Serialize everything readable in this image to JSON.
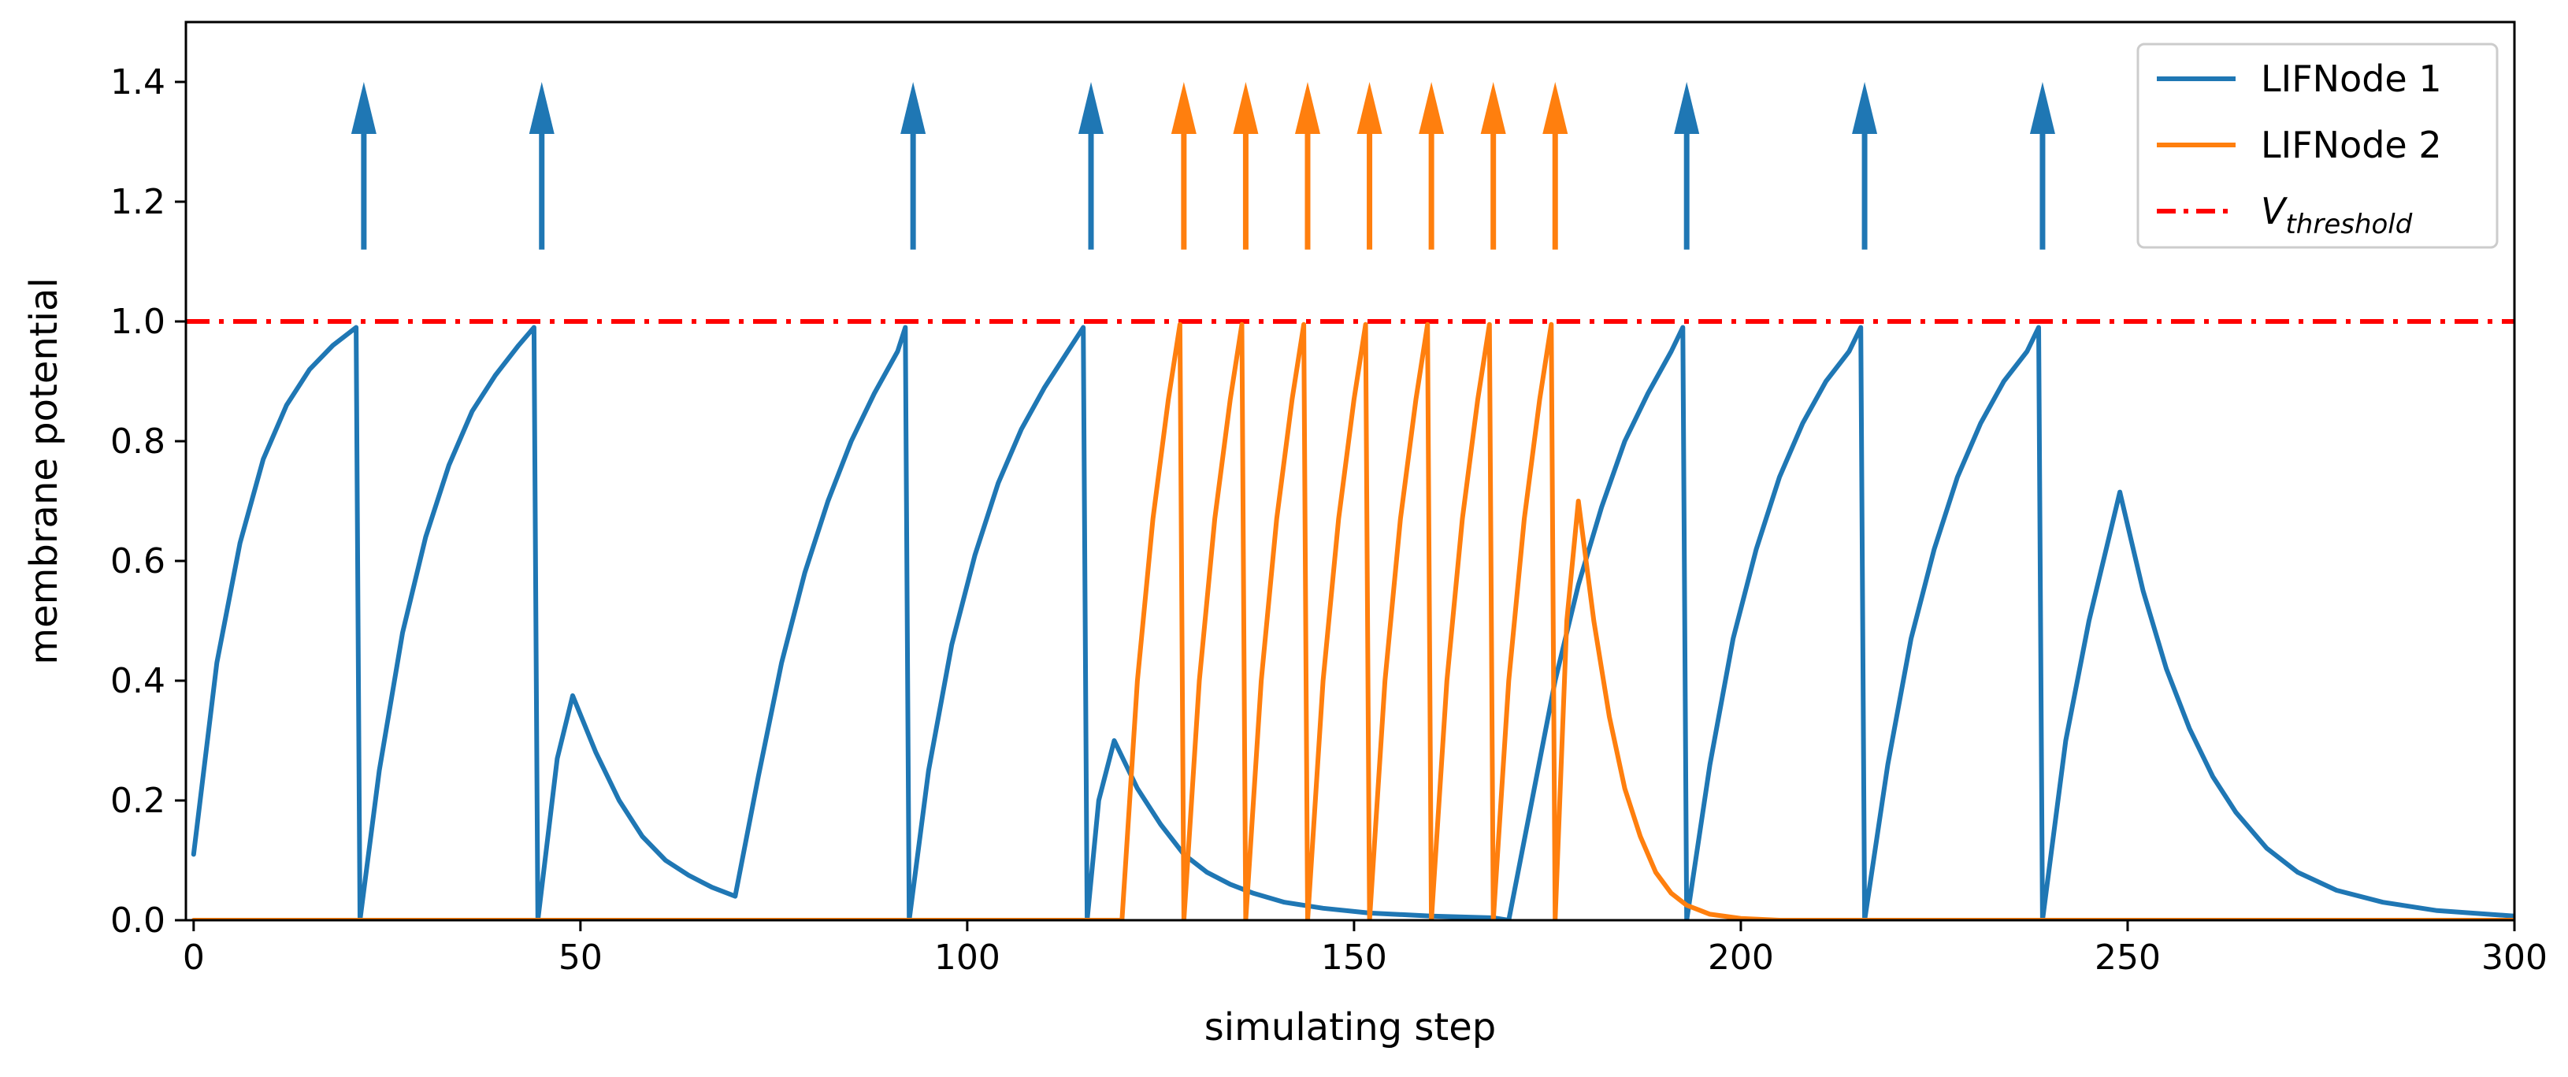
{
  "chart_data": {
    "type": "line",
    "xlabel": "simulating step",
    "ylabel": "membrane potential",
    "xlim": [
      -1,
      300
    ],
    "ylim": [
      0,
      1.5
    ],
    "xticks": [
      0,
      50,
      100,
      150,
      200,
      250,
      300
    ],
    "yticks": [
      0.0,
      0.2,
      0.4,
      0.6,
      0.8,
      1.0,
      1.2,
      1.4
    ],
    "ytick_labels": [
      "0.0",
      "0.2",
      "0.4",
      "0.6",
      "0.8",
      "1.0",
      "1.2",
      "1.4"
    ],
    "grid": false,
    "legend_position": "top-right",
    "threshold": {
      "name_base": "V",
      "name_sub": "threshold",
      "value": 1.0,
      "color": "#ff0000",
      "style": "dash-dot"
    },
    "series": [
      {
        "name": "LIFNode 1",
        "color": "#1f77b4",
        "points": [
          [
            0,
            0.11
          ],
          [
            3,
            0.43
          ],
          [
            6,
            0.63
          ],
          [
            9,
            0.77
          ],
          [
            12,
            0.86
          ],
          [
            15,
            0.92
          ],
          [
            18,
            0.96
          ],
          [
            21,
            0.99
          ],
          [
            21.5,
            0.0
          ],
          [
            24,
            0.25
          ],
          [
            27,
            0.48
          ],
          [
            30,
            0.64
          ],
          [
            33,
            0.76
          ],
          [
            36,
            0.85
          ],
          [
            39,
            0.91
          ],
          [
            42,
            0.96
          ],
          [
            44,
            0.99
          ],
          [
            44.5,
            0.0
          ],
          [
            47,
            0.27
          ],
          [
            49,
            0.375
          ],
          [
            52,
            0.28
          ],
          [
            55,
            0.2
          ],
          [
            58,
            0.14
          ],
          [
            61,
            0.1
          ],
          [
            64,
            0.075
          ],
          [
            67,
            0.055
          ],
          [
            70,
            0.04
          ],
          [
            73,
            0.24
          ],
          [
            76,
            0.43
          ],
          [
            79,
            0.58
          ],
          [
            82,
            0.7
          ],
          [
            85,
            0.8
          ],
          [
            88,
            0.88
          ],
          [
            91,
            0.95
          ],
          [
            92,
            0.99
          ],
          [
            92.5,
            0.0
          ],
          [
            95,
            0.25
          ],
          [
            98,
            0.46
          ],
          [
            101,
            0.61
          ],
          [
            104,
            0.73
          ],
          [
            107,
            0.82
          ],
          [
            110,
            0.89
          ],
          [
            113,
            0.95
          ],
          [
            115,
            0.99
          ],
          [
            115.5,
            0.0
          ],
          [
            117,
            0.2
          ],
          [
            119,
            0.3
          ],
          [
            122,
            0.22
          ],
          [
            125,
            0.16
          ],
          [
            128,
            0.11
          ],
          [
            131,
            0.08
          ],
          [
            134,
            0.06
          ],
          [
            137,
            0.045
          ],
          [
            141,
            0.03
          ],
          [
            146,
            0.02
          ],
          [
            152,
            0.012
          ],
          [
            160,
            0.007
          ],
          [
            168,
            0.004
          ],
          [
            170,
            0.0
          ],
          [
            173,
            0.2
          ],
          [
            176,
            0.4
          ],
          [
            179,
            0.56
          ],
          [
            182,
            0.69
          ],
          [
            185,
            0.8
          ],
          [
            188,
            0.88
          ],
          [
            191,
            0.95
          ],
          [
            192.5,
            0.99
          ],
          [
            193,
            0.0
          ],
          [
            196,
            0.26
          ],
          [
            199,
            0.47
          ],
          [
            202,
            0.62
          ],
          [
            205,
            0.74
          ],
          [
            208,
            0.83
          ],
          [
            211,
            0.9
          ],
          [
            214,
            0.95
          ],
          [
            215.5,
            0.99
          ],
          [
            216,
            0.0
          ],
          [
            219,
            0.26
          ],
          [
            222,
            0.47
          ],
          [
            225,
            0.62
          ],
          [
            228,
            0.74
          ],
          [
            231,
            0.83
          ],
          [
            234,
            0.9
          ],
          [
            237,
            0.95
          ],
          [
            238.5,
            0.99
          ],
          [
            239,
            0.0
          ],
          [
            242,
            0.3
          ],
          [
            245,
            0.5
          ],
          [
            249,
            0.715
          ],
          [
            252,
            0.55
          ],
          [
            255,
            0.42
          ],
          [
            258,
            0.32
          ],
          [
            261,
            0.24
          ],
          [
            264,
            0.18
          ],
          [
            268,
            0.12
          ],
          [
            272,
            0.08
          ],
          [
            277,
            0.05
          ],
          [
            283,
            0.03
          ],
          [
            290,
            0.016
          ],
          [
            300,
            0.007
          ]
        ]
      },
      {
        "name": "LIFNode 2",
        "color": "#ff7f0e",
        "points": [
          [
            0,
            0.0
          ],
          [
            120,
            0.0
          ],
          [
            122,
            0.4
          ],
          [
            124,
            0.67
          ],
          [
            126,
            0.87
          ],
          [
            127.5,
            0.995
          ],
          [
            128,
            0.0
          ],
          [
            130,
            0.4
          ],
          [
            132,
            0.67
          ],
          [
            134,
            0.87
          ],
          [
            135.5,
            0.995
          ],
          [
            136,
            0.0
          ],
          [
            138,
            0.4
          ],
          [
            140,
            0.67
          ],
          [
            142,
            0.87
          ],
          [
            143.5,
            0.995
          ],
          [
            144,
            0.0
          ],
          [
            146,
            0.4
          ],
          [
            148,
            0.67
          ],
          [
            150,
            0.87
          ],
          [
            151.5,
            0.995
          ],
          [
            152,
            0.0
          ],
          [
            154,
            0.4
          ],
          [
            156,
            0.67
          ],
          [
            158,
            0.87
          ],
          [
            159.5,
            0.995
          ],
          [
            160,
            0.0
          ],
          [
            162,
            0.4
          ],
          [
            164,
            0.67
          ],
          [
            166,
            0.87
          ],
          [
            167.5,
            0.995
          ],
          [
            168,
            0.0
          ],
          [
            170,
            0.4
          ],
          [
            172,
            0.67
          ],
          [
            174,
            0.87
          ],
          [
            175.5,
            0.995
          ],
          [
            176,
            0.0
          ],
          [
            177.5,
            0.5
          ],
          [
            179,
            0.7
          ],
          [
            181,
            0.5
          ],
          [
            183,
            0.34
          ],
          [
            185,
            0.22
          ],
          [
            187,
            0.14
          ],
          [
            189,
            0.08
          ],
          [
            191,
            0.045
          ],
          [
            193,
            0.025
          ],
          [
            196,
            0.01
          ],
          [
            200,
            0.003
          ],
          [
            205,
            0.0
          ],
          [
            300,
            0.0
          ]
        ]
      }
    ],
    "spikes": [
      {
        "series": "LIFNode 1",
        "x": [
          22,
          45,
          93,
          116,
          193,
          216,
          239
        ],
        "from": 1.12,
        "to": 1.4
      },
      {
        "series": "LIFNode 2",
        "x": [
          128,
          136,
          144,
          152,
          160,
          168,
          176
        ],
        "from": 1.12,
        "to": 1.4
      }
    ]
  }
}
